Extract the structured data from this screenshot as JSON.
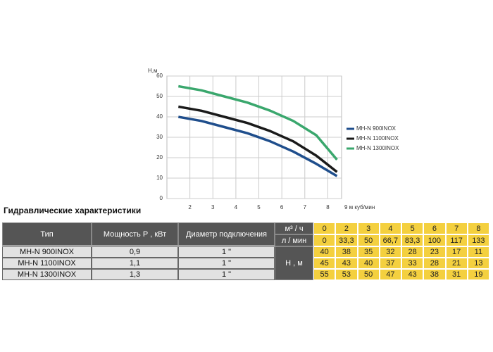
{
  "chart_data": {
    "type": "line",
    "ylabel": "Н,м",
    "xlabel": "9 м куб/мин",
    "x": [
      1.5,
      2.5,
      3.5,
      4.5,
      5.5,
      6.5,
      7.5,
      8.4
    ],
    "xlim": [
      1,
      8.6
    ],
    "xticks": [
      2,
      3,
      4,
      5,
      6,
      7,
      8
    ],
    "ylim": [
      0,
      60
    ],
    "yticks": [
      0,
      10,
      20,
      30,
      40,
      50,
      60
    ],
    "grid": true,
    "series": [
      {
        "name": "MH-N 900INOX",
        "color": "#1f4e8c",
        "values": [
          40,
          38,
          35,
          32,
          28,
          23,
          17,
          11
        ]
      },
      {
        "name": "MH-N 1100INOX",
        "color": "#1a1a1a",
        "values": [
          45,
          43,
          40,
          37,
          33,
          28,
          21,
          13
        ]
      },
      {
        "name": "MH-N 1300INOX",
        "color": "#3aa76d",
        "values": [
          55,
          53,
          50,
          47,
          43,
          38,
          31,
          19
        ]
      }
    ]
  },
  "table": {
    "title": "Гидравлические характеристики",
    "header": [
      "Тип",
      "Мощность Р , кВт",
      "Диаметр подключения"
    ],
    "units": [
      "м³ / ч",
      "л / мин",
      "Н , м"
    ],
    "flow_m3h": [
      "0",
      "2",
      "3",
      "4",
      "5",
      "6",
      "7",
      "8"
    ],
    "flow_lmin": [
      "0",
      "33,3",
      "50",
      "66,7",
      "83,3",
      "100",
      "117",
      "133"
    ],
    "rows": [
      {
        "name": "MH-N 900INOX",
        "power": "0,9",
        "diameter": "1 \"",
        "head": [
          "40",
          "38",
          "35",
          "32",
          "28",
          "23",
          "17",
          "11"
        ]
      },
      {
        "name": "MH-N 1100INOX",
        "power": "1,1",
        "diameter": "1 \"",
        "head": [
          "45",
          "43",
          "40",
          "37",
          "33",
          "28",
          "21",
          "13"
        ]
      },
      {
        "name": "MH-N 1300INOX",
        "power": "1,3",
        "diameter": "1 \"",
        "head": [
          "55",
          "53",
          "50",
          "47",
          "43",
          "38",
          "31",
          "19"
        ]
      }
    ]
  }
}
